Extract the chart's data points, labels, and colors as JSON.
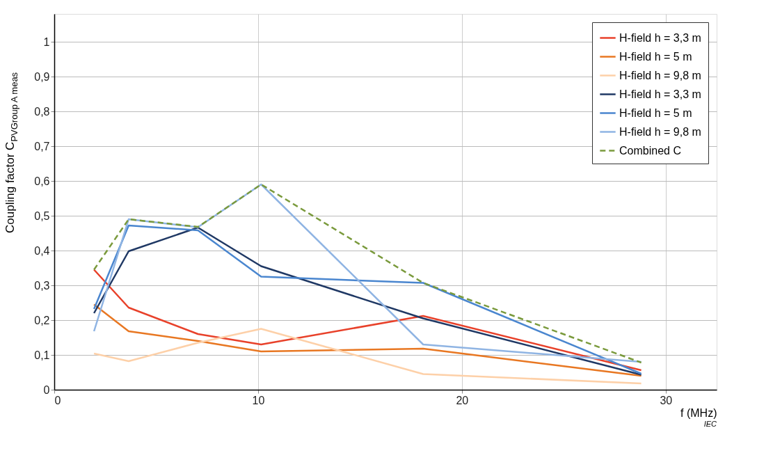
{
  "chart_data": {
    "type": "line",
    "ylabel": "Coupling factor C$_{PVGroup A meas}$",
    "xlabel": "f  (MHz)",
    "x": [
      1.95,
      3.65,
      7.05,
      10.15,
      18.1,
      28.8
    ],
    "series": [
      {
        "name": "H-field h = 3,3 m",
        "color": "#e8412a",
        "values": [
          0.345,
          0.236,
          0.16,
          0.13,
          0.212,
          0.056
        ]
      },
      {
        "name": "H-field h = 5 m",
        "color": "#e87722",
        "values": [
          0.245,
          0.168,
          0.14,
          0.11,
          0.118,
          0.04
        ]
      },
      {
        "name": "H-field h = 9,8 m",
        "color": "#fdd0a8",
        "values": [
          0.104,
          0.082,
          0.135,
          0.175,
          0.045,
          0.018
        ]
      },
      {
        "name": "H-field h = 3,3 m",
        "color": "#1f3864",
        "values": [
          0.22,
          0.398,
          0.466,
          0.355,
          0.205,
          0.043
        ]
      },
      {
        "name": "H-field h = 5 m",
        "color": "#4a86cf",
        "values": [
          0.232,
          0.472,
          0.458,
          0.325,
          0.307,
          0.046
        ]
      },
      {
        "name": "H-field h = 9,8 m",
        "color": "#8fb4e3",
        "values": [
          0.168,
          0.49,
          0.467,
          0.59,
          0.13,
          0.08
        ]
      },
      {
        "name": "Combined C",
        "color": "#7a9a3c",
        "line_style": "dashed",
        "values": [
          0.345,
          0.49,
          0.468,
          0.59,
          0.307,
          0.078
        ]
      }
    ],
    "xlim": [
      0,
      32.5
    ],
    "xticks": [
      0,
      10,
      20,
      30
    ],
    "ylim": [
      0,
      1.08
    ],
    "yticks": [
      0,
      {
        "value": 0.1,
        "label": "0,1"
      },
      {
        "value": 0.2,
        "label": "0,2"
      },
      {
        "value": 0.3,
        "label": "0,3"
      },
      {
        "value": 0.4,
        "label": "0,4"
      },
      {
        "value": 0.5,
        "label": "0,5"
      },
      {
        "value": 0.6,
        "label": "0,6"
      },
      {
        "value": 0.7,
        "label": "0,7"
      },
      {
        "value": 0.8,
        "label": "0,8"
      },
      {
        "value": 0.9,
        "label": "0,9"
      },
      1
    ],
    "grid": true,
    "legend": "top right",
    "line_style": "solid",
    "marker": "none",
    "annotations": [
      "IEC"
    ]
  }
}
